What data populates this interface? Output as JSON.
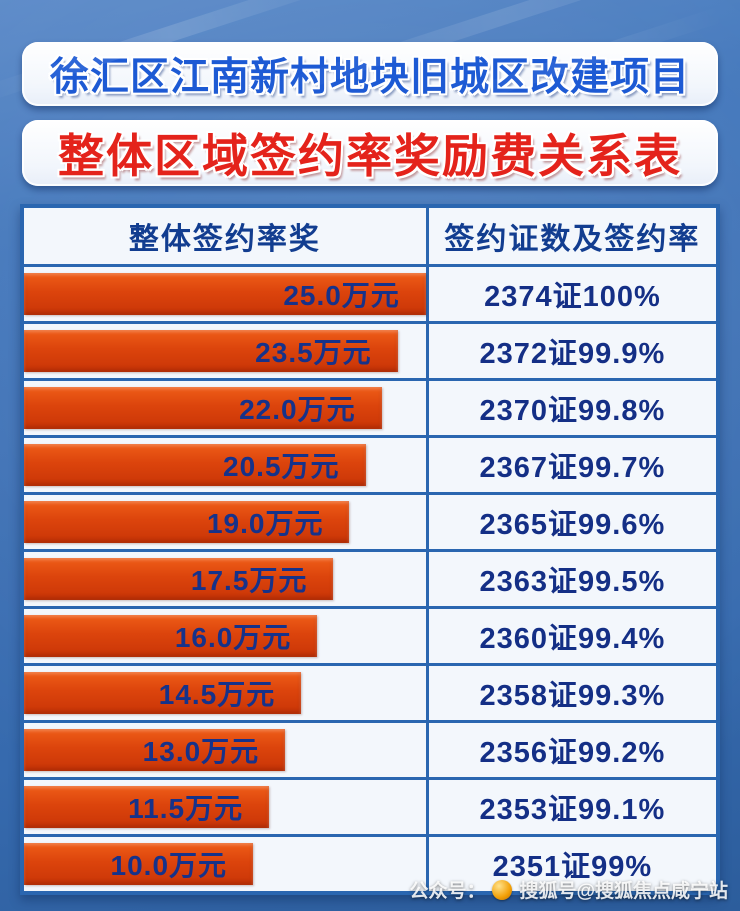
{
  "titles": {
    "line1": "徐汇区江南新村地块旧城区改建项目",
    "line2": "整体区域签约率奖励费关系表"
  },
  "table": {
    "headers": [
      "整体签约率奖",
      "签约证数及签约率"
    ],
    "rows": [
      {
        "award": "25.0万元",
        "certs": "2374证100%",
        "bar_pct": 100
      },
      {
        "award": "23.5万元",
        "certs": "2372证99.9%",
        "bar_pct": 93
      },
      {
        "award": "22.0万元",
        "certs": "2370证99.8%",
        "bar_pct": 89
      },
      {
        "award": "20.5万元",
        "certs": "2367证99.7%",
        "bar_pct": 85
      },
      {
        "award": "19.0万元",
        "certs": "2365证99.6%",
        "bar_pct": 81
      },
      {
        "award": "17.5万元",
        "certs": "2363证99.5%",
        "bar_pct": 77
      },
      {
        "award": "16.0万元",
        "certs": "2360证99.4%",
        "bar_pct": 73
      },
      {
        "award": "14.5万元",
        "certs": "2358证99.3%",
        "bar_pct": 69
      },
      {
        "award": "13.0万元",
        "certs": "2356证99.2%",
        "bar_pct": 65
      },
      {
        "award": "11.5万元",
        "certs": "2353证99.1%",
        "bar_pct": 61
      },
      {
        "award": "10.0万元",
        "certs": "2351证99%",
        "bar_pct": 57
      }
    ]
  },
  "watermark": {
    "prefix": "公众号：",
    "sohu": "搜狐号@搜狐焦点咸宁站"
  },
  "colors": {
    "background_blue": "#3d70b4",
    "title_blue": "#1d5ad4",
    "title_red": "#e4231b",
    "table_border": "#2a66b0",
    "bar_orange": "#dc440c",
    "text_navy": "#142f86"
  },
  "chart_data": {
    "type": "bar",
    "orientation": "horizontal",
    "title": "整体区域签约率奖励费关系表",
    "subtitle": "徐汇区江南新村地块旧城区改建项目",
    "categories": [
      "2374证100%",
      "2372证99.9%",
      "2370证99.8%",
      "2367证99.7%",
      "2365证99.6%",
      "2363证99.5%",
      "2360证99.4%",
      "2358证99.3%",
      "2356证99.2%",
      "2353证99.1%",
      "2351证99%"
    ],
    "series": [
      {
        "name": "整体签约率奖（万元）",
        "values": [
          25.0,
          23.5,
          22.0,
          20.5,
          19.0,
          17.5,
          16.0,
          14.5,
          13.0,
          11.5,
          10.0
        ]
      }
    ],
    "xlabel": "整体签约率奖",
    "ylabel": "签约证数及签约率",
    "legend": false,
    "grid": false
  }
}
